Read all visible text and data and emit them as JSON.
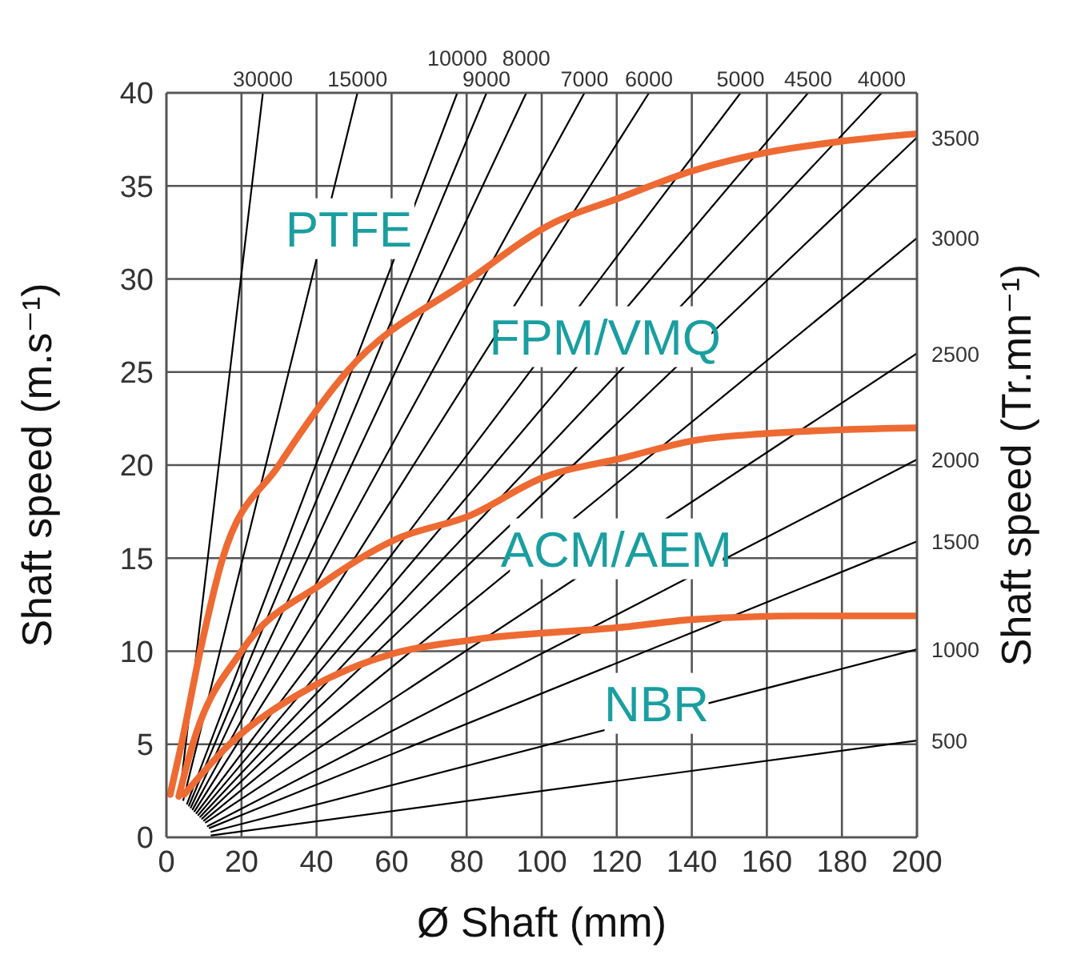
{
  "chart_data": {
    "type": "line",
    "xlabel": "Ø Shaft (mm)",
    "ylabel": "Shaft speed (m.s⁻¹)",
    "y2label": "Shaft speed (Tr.mn⁻¹)",
    "xlim": [
      0,
      200
    ],
    "xticks": [
      0,
      20,
      40,
      60,
      80,
      100,
      120,
      140,
      160,
      180,
      200
    ],
    "ylim": [
      0,
      40
    ],
    "yticks": [
      0,
      5,
      10,
      15,
      20,
      25,
      30,
      35,
      40
    ],
    "grid": true,
    "marker": "none",
    "series": [
      {
        "name": "30000",
        "color": "#000000",
        "x": [
          3.5,
          25.7
        ],
        "values": [
          2.2,
          40
        ]
      },
      {
        "name": "15000",
        "color": "#000000",
        "x": [
          4.5,
          50.9
        ],
        "values": [
          2.0,
          40
        ]
      },
      {
        "name": "10000",
        "color": "#000000",
        "x": [
          5.5,
          77.5
        ],
        "values": [
          1.8,
          40
        ]
      },
      {
        "name": "9000",
        "color": "#000000",
        "x": [
          6,
          85.3
        ],
        "values": [
          1.7,
          40
        ]
      },
      {
        "name": "8000",
        "color": "#000000",
        "x": [
          6.5,
          95.9
        ],
        "values": [
          1.6,
          40
        ]
      },
      {
        "name": "7000",
        "color": "#000000",
        "x": [
          7,
          111.4
        ],
        "values": [
          1.5,
          40
        ]
      },
      {
        "name": "6000",
        "color": "#000000",
        "x": [
          7.5,
          128.6
        ],
        "values": [
          1.4,
          40
        ]
      },
      {
        "name": "5000",
        "color": "#000000",
        "x": [
          8,
          153
        ],
        "values": [
          1.3,
          40
        ]
      },
      {
        "name": "4500",
        "color": "#000000",
        "x": [
          8.5,
          171
        ],
        "values": [
          1.2,
          40
        ]
      },
      {
        "name": "4000",
        "color": "#000000",
        "x": [
          9,
          190.6
        ],
        "values": [
          1.1,
          40
        ]
      },
      {
        "name": "3500",
        "color": "#000000",
        "x": [
          9.5,
          200
        ],
        "values": [
          1.0,
          37.6
        ]
      },
      {
        "name": "3000",
        "color": "#000000",
        "x": [
          10,
          200
        ],
        "values": [
          0.9,
          32.2
        ]
      },
      {
        "name": "2500",
        "color": "#000000",
        "x": [
          10.5,
          200
        ],
        "values": [
          0.8,
          26
        ]
      },
      {
        "name": "2000",
        "color": "#000000",
        "x": [
          11,
          200
        ],
        "values": [
          0.6,
          20.3
        ]
      },
      {
        "name": "1500",
        "color": "#000000",
        "x": [
          11.5,
          200
        ],
        "values": [
          0.5,
          15.9
        ]
      },
      {
        "name": "1000",
        "color": "#000000",
        "x": [
          12,
          200
        ],
        "values": [
          0.3,
          10.1
        ]
      },
      {
        "name": "500",
        "color": "#000000",
        "x": [
          12,
          200
        ],
        "values": [
          0.1,
          5.2
        ]
      },
      {
        "color": "#ee6a33",
        "x": [
          1,
          4,
          9,
          15,
          30,
          48,
          81,
          103,
          120,
          140,
          160,
          180,
          200
        ],
        "values": [
          2.3,
          5,
          10,
          15,
          20,
          25,
          30,
          33,
          34.3,
          35.8,
          36.8,
          37.4,
          37.8
        ]
      },
      {
        "color": "#ee6a33",
        "x": [
          3.3,
          7,
          20,
          42,
          61,
          81,
          100,
          122,
          140,
          160,
          180,
          200
        ],
        "values": [
          2.2,
          5,
          10,
          13.7,
          16,
          17.3,
          19.3,
          20.4,
          21.3,
          21.7,
          21.9,
          22
        ]
      },
      {
        "color": "#ee6a33",
        "x": [
          4.7,
          16.8,
          38,
          61,
          81,
          122,
          140,
          170,
          200
        ],
        "values": [
          2.3,
          5,
          8,
          9.9,
          10.6,
          11.3,
          11.7,
          11.9,
          11.9
        ]
      }
    ],
    "annotations": [
      "PTFE",
      "FPM/VMQ",
      "ACM/AEM",
      "NBR"
    ]
  }
}
